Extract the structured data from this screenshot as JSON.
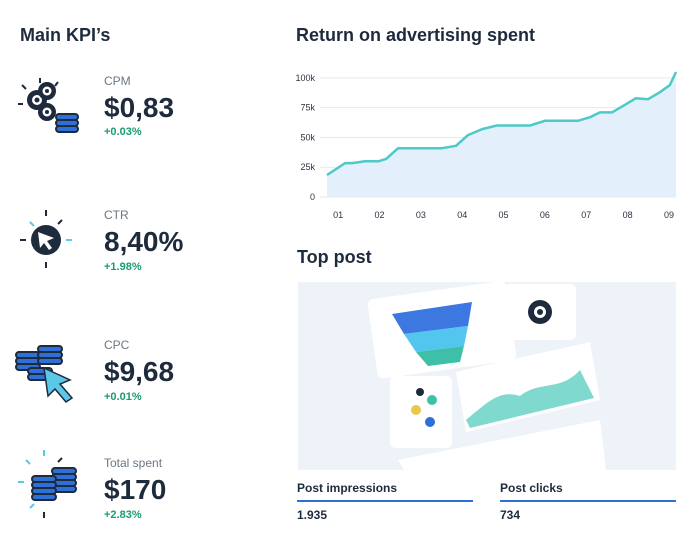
{
  "kpis": {
    "title": "Main KPI’s",
    "items": [
      {
        "label": "CPM",
        "value": "$0,83",
        "change": "+0.03%"
      },
      {
        "label": "CTR",
        "value": "8,40%",
        "change": "+1.98%"
      },
      {
        "label": "CPC",
        "value": "$9,68",
        "change": "+0.01%"
      },
      {
        "label": "Total spent",
        "value": "$170",
        "change": "+2.83%"
      }
    ]
  },
  "chart_data": {
    "type": "line",
    "title": "Return on advertising spent",
    "x": [
      0.73,
      1.17,
      1.34,
      1.65,
      1.97,
      2.16,
      2.45,
      3.51,
      3.85,
      4.14,
      4.48,
      4.84,
      5.64,
      6.0,
      6.8,
      7.09,
      7.33,
      7.62,
      7.89,
      8.2,
      8.49,
      8.78,
      9.02,
      9.17
    ],
    "series": [
      {
        "name": "Return on advertising spent",
        "color": "#4cc9c9",
        "values": [
          18500,
          28500,
          28500,
          30000,
          30000,
          32000,
          41000,
          41000,
          43000,
          52000,
          57000,
          60000,
          60000,
          64000,
          64000,
          67000,
          71000,
          71000,
          76500,
          83000,
          82000,
          88000,
          94000,
          105000
        ]
      }
    ],
    "xlim": [
      0.73,
      9.17
    ],
    "xticks": [
      {
        "value": 1,
        "label": "01"
      },
      {
        "value": 2,
        "label": "02"
      },
      {
        "value": 3,
        "label": "03"
      },
      {
        "value": 4,
        "label": "04"
      },
      {
        "value": 5,
        "label": "05"
      },
      {
        "value": 6,
        "label": "06"
      },
      {
        "value": 7,
        "label": "07"
      },
      {
        "value": 8,
        "label": "08"
      },
      {
        "value": 9,
        "label": "09"
      }
    ],
    "ylim": [
      0,
      110000
    ],
    "yticks": [
      0,
      {
        "value": 25000,
        "label": "25k"
      },
      {
        "value": 50000,
        "label": "50k"
      },
      {
        "value": 75000,
        "label": "75k"
      },
      {
        "value": 100000,
        "label": "100k"
      }
    ],
    "grid": true,
    "area_color": "#e3effb"
  },
  "top_post": {
    "title": "Top post",
    "stats": [
      {
        "label": "Post impressions",
        "value": "1.935"
      },
      {
        "label": "Post clicks",
        "value": "734"
      }
    ]
  }
}
